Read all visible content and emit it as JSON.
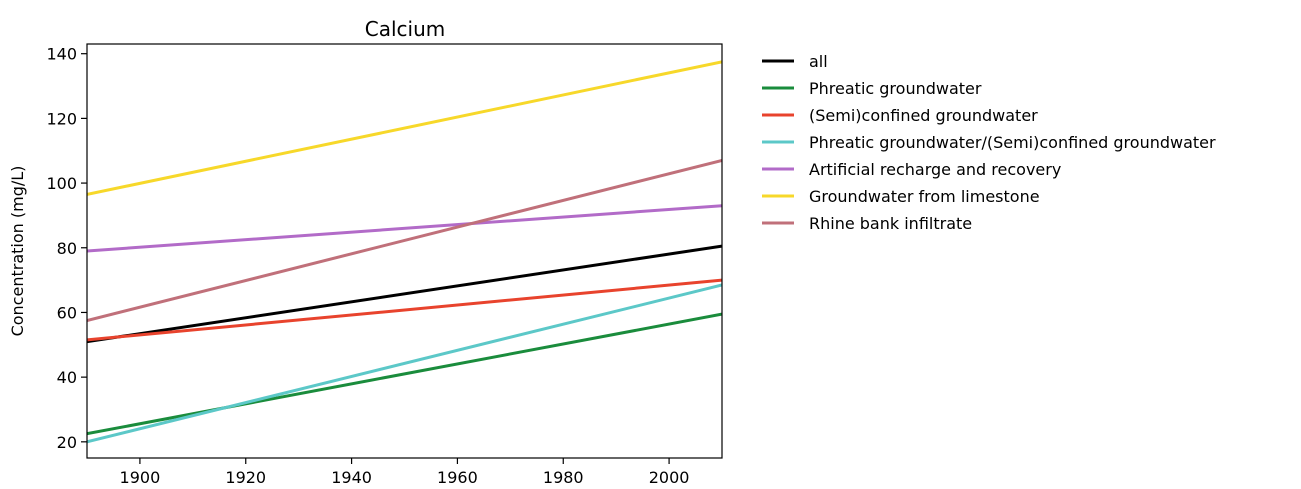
{
  "chart_data": {
    "type": "line",
    "title": "Calcium",
    "xlabel": "",
    "ylabel": "Concentration (mg/L)",
    "xlim": [
      1890,
      2010
    ],
    "ylim": [
      15,
      143
    ],
    "xticks": [
      1900,
      1920,
      1940,
      1960,
      1980,
      2000
    ],
    "yticks": [
      20,
      40,
      60,
      80,
      100,
      120,
      140
    ],
    "legend_position": "outside-right",
    "series": [
      {
        "name": "all",
        "color": "#000000",
        "x": [
          1890,
          2010
        ],
        "y": [
          51,
          80.5
        ]
      },
      {
        "name": "Phreatic groundwater",
        "color": "#1a8c3c",
        "x": [
          1890,
          2010
        ],
        "y": [
          22.5,
          59.5
        ]
      },
      {
        "name": "(Semi)confined groundwater",
        "color": "#e8432d",
        "x": [
          1890,
          2010
        ],
        "y": [
          51.5,
          70
        ]
      },
      {
        "name": "Phreatic groundwater/(Semi)confined groundwater",
        "color": "#5cc8c8",
        "x": [
          1890,
          2010
        ],
        "y": [
          20,
          68.5
        ]
      },
      {
        "name": "Artificial recharge and recovery",
        "color": "#b26bc8",
        "x": [
          1890,
          2010
        ],
        "y": [
          79,
          93
        ]
      },
      {
        "name": "Groundwater from limestone",
        "color": "#f7d82a",
        "x": [
          1890,
          2010
        ],
        "y": [
          96.5,
          137.5
        ]
      },
      {
        "name": "Rhine bank infiltrate",
        "color": "#c0707a",
        "x": [
          1890,
          2010
        ],
        "y": [
          57.5,
          107
        ]
      }
    ]
  }
}
